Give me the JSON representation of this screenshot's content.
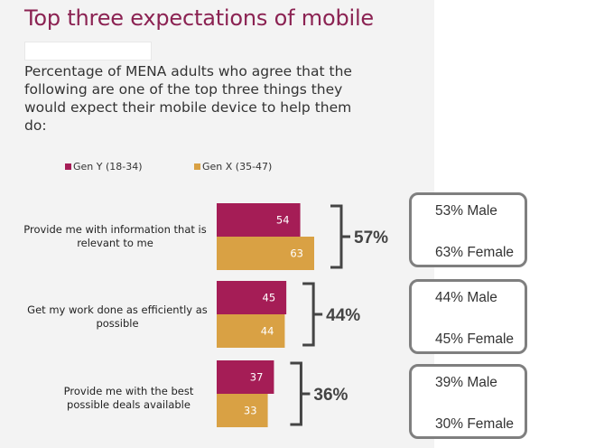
{
  "title": "Top three expectations of mobile",
  "subtitle": "Percentage of MENA adults who agree that the following are one of the top three things they would expect their mobile device to help them do:",
  "colors": {
    "gen_y": "#a51d56",
    "gen_x": "#d9a144",
    "title": "#8b2252",
    "bracket": "#444444",
    "callout_border": "#7f7f7f"
  },
  "chart_data": {
    "type": "bar",
    "orientation": "horizontal",
    "categories": [
      "Provide me with information that is relevant to me",
      "Get my work done as efficiently as possible",
      "Provide me with the best possible deals available"
    ],
    "series": [
      {
        "name": "Gen Y (18-34)",
        "values": [
          54,
          45,
          37
        ]
      },
      {
        "name": "Gen X (35-47)",
        "values": [
          63,
          44,
          33
        ]
      }
    ],
    "totals": [
      "57%",
      "44%",
      "36%"
    ],
    "legend_position": "top-left",
    "grid": false
  },
  "callouts": [
    {
      "male": "53% Male",
      "female": "63% Female"
    },
    {
      "male": "44% Male",
      "female": "45% Female"
    },
    {
      "male": "39% Male",
      "female": "30% Female"
    }
  ]
}
